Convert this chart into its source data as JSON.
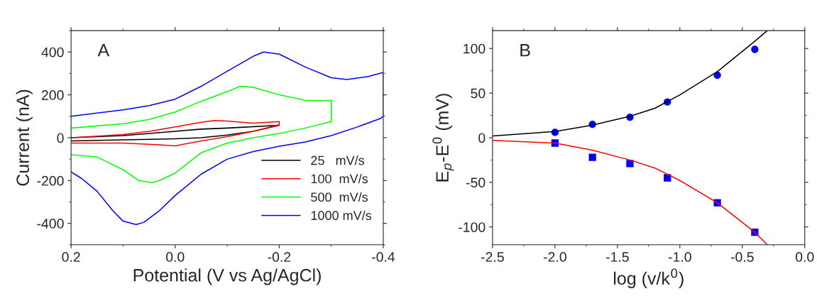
{
  "chart_data": [
    {
      "type": "line",
      "xlabel": "Potential (V vs Ag/AgCl)",
      "ylabel": "Current (nA)",
      "annotations": [
        "A"
      ],
      "xlim": [
        0.2,
        -0.4
      ],
      "xticks": [
        {
          "value": 0.2,
          "label": "0.2"
        },
        {
          "value": 0,
          "label": "0.0"
        },
        {
          "value": -0.2,
          "label": "-0.2"
        },
        {
          "value": -0.4,
          "label": "-0.4"
        }
      ],
      "ylim": [
        -500,
        500
      ],
      "yticks": [
        -400,
        -200,
        0,
        200,
        400
      ],
      "grid": false,
      "legend": "bottom right",
      "marker": "none",
      "line_style": "solid",
      "series": [
        {
          "name": "25   mV/s",
          "color": "#000000",
          "x": [
            0.2,
            0.1,
            0.0,
            -0.05,
            -0.1,
            -0.2,
            -0.15,
            -0.1,
            -0.05,
            0.0,
            0.1,
            0.2
          ],
          "values": [
            0,
            10,
            30,
            40,
            45,
            58,
            30,
            12,
            0,
            -5,
            -10,
            -15
          ]
        },
        {
          "name": "100  mV/s",
          "color": "#ff0000",
          "x": [
            0.2,
            0.1,
            0.05,
            0.0,
            -0.05,
            -0.075,
            -0.1,
            -0.15,
            -0.2,
            -0.2,
            -0.15,
            -0.1,
            -0.05,
            0.0,
            0.03,
            0.1,
            0.2
          ],
          "values": [
            0,
            15,
            30,
            50,
            72,
            80,
            78,
            68,
            75,
            60,
            30,
            5,
            -15,
            -38,
            -33,
            -25,
            -25
          ]
        },
        {
          "name": "500  mV/s",
          "color": "#00ff00",
          "x": [
            0.2,
            0.1,
            0.05,
            0.0,
            -0.05,
            -0.1,
            -0.125,
            -0.15,
            -0.2,
            -0.25,
            -0.28,
            -0.3,
            -0.3,
            -0.25,
            -0.2,
            -0.15,
            -0.1,
            -0.05,
            0.0,
            0.03,
            0.045,
            0.07,
            0.1,
            0.15,
            0.2
          ],
          "values": [
            45,
            65,
            85,
            120,
            170,
            215,
            240,
            235,
            200,
            175,
            172,
            175,
            75,
            45,
            20,
            0,
            -25,
            -70,
            -165,
            -200,
            -210,
            -200,
            -150,
            -90,
            -80
          ]
        },
        {
          "name": "1000 mV/s",
          "color": "#0000ff",
          "x": [
            0.2,
            0.15,
            0.1,
            0.05,
            0.0,
            -0.05,
            -0.1,
            -0.15,
            -0.17,
            -0.2,
            -0.25,
            -0.3,
            -0.33,
            -0.37,
            -0.4,
            -0.4,
            -0.395,
            -0.35,
            -0.3,
            -0.25,
            -0.2,
            -0.15,
            -0.1,
            -0.05,
            0.0,
            0.03,
            0.06,
            0.075,
            0.1,
            0.12,
            0.15,
            0.18,
            0.2
          ],
          "values": [
            100,
            115,
            130,
            150,
            180,
            240,
            310,
            380,
            400,
            390,
            330,
            280,
            272,
            285,
            305,
            100,
            90,
            50,
            10,
            -20,
            -40,
            -65,
            -100,
            -170,
            -270,
            -340,
            -395,
            -405,
            -390,
            -340,
            -250,
            -190,
            -160
          ]
        }
      ]
    },
    {
      "type": "scatter",
      "xlabel": "log (v/k$^{0}$)",
      "ylabel": "E$_{p}$-E$^{0}$ (mV)",
      "annotations": [
        "B"
      ],
      "xlim": [
        -2.5,
        0
      ],
      "xticks": [
        {
          "value": -2.5,
          "label": "-2.5"
        },
        {
          "value": -2,
          "label": "-2.0"
        },
        {
          "value": -1.5,
          "label": "-1.5"
        },
        {
          "value": -1,
          "label": "-1.0"
        },
        {
          "value": -0.5,
          "label": "-0.5"
        },
        {
          "value": 0,
          "label": "0.0"
        }
      ],
      "ylim": [
        -120,
        120
      ],
      "yticks": [
        -100,
        -50,
        0,
        50,
        100
      ],
      "grid": false,
      "series": [
        {
          "type": "line",
          "color": "#000000",
          "marker": "none",
          "x": [
            -2.5,
            -2.0,
            -1.7,
            -1.4,
            -1.2,
            -1.0,
            -0.7,
            -0.4,
            -0.3
          ],
          "values": [
            2,
            7,
            14,
            24,
            33,
            48,
            74,
            108,
            120
          ]
        },
        {
          "type": "line",
          "color": "#ff0000",
          "marker": "none",
          "x": [
            -2.5,
            -2.0,
            -1.7,
            -1.4,
            -1.2,
            -1.0,
            -0.7,
            -0.4,
            -0.3
          ],
          "values": [
            -3,
            -6,
            -14,
            -25,
            -34,
            -48,
            -73,
            -106,
            -120
          ]
        },
        {
          "type": "scatter",
          "color": "#0000ff",
          "marker": "circle",
          "x": [
            -2.0,
            -1.7,
            -1.4,
            -1.1,
            -0.7,
            -0.4
          ],
          "values": [
            6,
            15,
            23,
            40,
            70,
            99
          ]
        },
        {
          "type": "scatter",
          "color": "#0000ff",
          "marker": "square",
          "x": [
            -2.0,
            -1.7,
            -1.4,
            -1.1,
            -0.7,
            -0.4
          ],
          "values": [
            -6,
            -22,
            -29,
            -45,
            -73,
            -106
          ]
        }
      ]
    }
  ]
}
